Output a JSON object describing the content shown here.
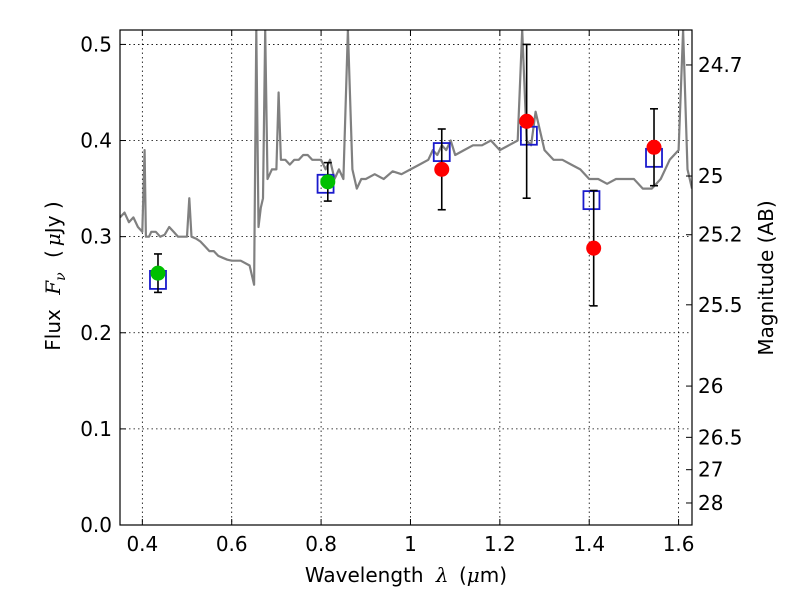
{
  "chart_data": {
    "type": "scatter",
    "xlabel_text": "Wavelength",
    "xlabel_symbol": "λ",
    "xlabel_unit_open": "(",
    "xlabel_unit_mu": "μ",
    "xlabel_unit_close": "m)",
    "ylabel_text": "Flux",
    "ylabel_symbol": "F",
    "ylabel_sub": "ν",
    "ylabel_unit_open": "(",
    "ylabel_unit_mu": "μ",
    "ylabel_unit_close": "Jy )",
    "y2label": "Magnitude (AB)",
    "xlim": [
      0.35,
      1.63
    ],
    "ylim": [
      0.0,
      0.515
    ],
    "grid": true,
    "x_ticks": [
      0.4,
      0.6,
      0.8,
      1.0,
      1.2,
      1.4,
      1.6
    ],
    "x_tick_labels": [
      "0.4",
      "0.6",
      "0.8",
      "1",
      "1.2",
      "1.4",
      "1.6"
    ],
    "y_ticks": [
      0.0,
      0.1,
      0.2,
      0.3,
      0.4,
      0.5
    ],
    "y_tick_labels": [
      "0.0",
      "0.1",
      "0.2",
      "0.3",
      "0.4",
      "0.5"
    ],
    "y2_ticks": [
      24.7,
      25,
      25.2,
      25.5,
      26,
      26.5,
      27,
      28
    ],
    "y2_tick_labels": [
      "24.7",
      "25",
      "25.2",
      "25.5",
      "26",
      "26.5",
      "27",
      "28"
    ],
    "colors": {
      "template": "#808080",
      "model_box": "#1a1acc",
      "observed_red": "#ff0000",
      "observed_green": "#00c000",
      "errorbar": "#000000"
    },
    "series": [
      {
        "kind": "line",
        "x": [
          0.35,
          0.36,
          0.37,
          0.38,
          0.39,
          0.4,
          0.405,
          0.408,
          0.41,
          0.415,
          0.42,
          0.43,
          0.44,
          0.45,
          0.46,
          0.47,
          0.48,
          0.49,
          0.5,
          0.505,
          0.51,
          0.52,
          0.53,
          0.54,
          0.55,
          0.56,
          0.57,
          0.58,
          0.59,
          0.6,
          0.62,
          0.64,
          0.65,
          0.655,
          0.66,
          0.665,
          0.67,
          0.675,
          0.68,
          0.69,
          0.7,
          0.705,
          0.71,
          0.72,
          0.73,
          0.74,
          0.75,
          0.76,
          0.77,
          0.78,
          0.79,
          0.8,
          0.81,
          0.82,
          0.83,
          0.84,
          0.85,
          0.86,
          0.87,
          0.88,
          0.89,
          0.9,
          0.92,
          0.94,
          0.96,
          0.98,
          1.0,
          1.02,
          1.04,
          1.05,
          1.06,
          1.07,
          1.08,
          1.09,
          1.1,
          1.12,
          1.14,
          1.16,
          1.18,
          1.2,
          1.22,
          1.24,
          1.25,
          1.26,
          1.27,
          1.28,
          1.3,
          1.32,
          1.34,
          1.36,
          1.38,
          1.4,
          1.42,
          1.44,
          1.46,
          1.48,
          1.5,
          1.52,
          1.54,
          1.56,
          1.58,
          1.6,
          1.61,
          1.62,
          1.63
        ],
        "y": [
          0.32,
          0.325,
          0.315,
          0.32,
          0.31,
          0.305,
          0.39,
          0.3,
          0.3,
          0.3,
          0.305,
          0.305,
          0.3,
          0.302,
          0.31,
          0.305,
          0.3,
          0.3,
          0.3,
          0.34,
          0.3,
          0.298,
          0.295,
          0.29,
          0.285,
          0.285,
          0.28,
          0.278,
          0.276,
          0.275,
          0.275,
          0.27,
          0.25,
          0.515,
          0.31,
          0.33,
          0.34,
          0.515,
          0.36,
          0.37,
          0.37,
          0.45,
          0.38,
          0.38,
          0.375,
          0.38,
          0.38,
          0.385,
          0.385,
          0.38,
          0.38,
          0.38,
          0.37,
          0.38,
          0.36,
          0.37,
          0.36,
          0.515,
          0.37,
          0.35,
          0.36,
          0.36,
          0.365,
          0.36,
          0.368,
          0.365,
          0.37,
          0.375,
          0.38,
          0.39,
          0.385,
          0.395,
          0.39,
          0.4,
          0.385,
          0.39,
          0.395,
          0.395,
          0.4,
          0.39,
          0.395,
          0.4,
          0.515,
          0.4,
          0.395,
          0.43,
          0.39,
          0.38,
          0.38,
          0.375,
          0.37,
          0.36,
          0.36,
          0.355,
          0.36,
          0.36,
          0.36,
          0.35,
          0.35,
          0.36,
          0.38,
          0.39,
          0.515,
          0.37,
          0.35
        ]
      },
      {
        "kind": "box",
        "x": [
          0.435,
          0.81,
          1.07,
          1.265,
          1.405,
          1.545
        ],
        "y": [
          0.255,
          0.355,
          0.388,
          0.405,
          0.338,
          0.382
        ]
      },
      {
        "kind": "points",
        "color_key": "observed_green",
        "x": [
          0.435,
          0.815
        ],
        "y": [
          0.262,
          0.357
        ],
        "err": [
          0.02,
          0.02
        ]
      },
      {
        "kind": "points",
        "color_key": "observed_red",
        "x": [
          1.07,
          1.26,
          1.41,
          1.545
        ],
        "y": [
          0.37,
          0.42,
          0.288,
          0.393
        ],
        "err": [
          0.042,
          0.08,
          0.06,
          0.04
        ]
      }
    ]
  }
}
